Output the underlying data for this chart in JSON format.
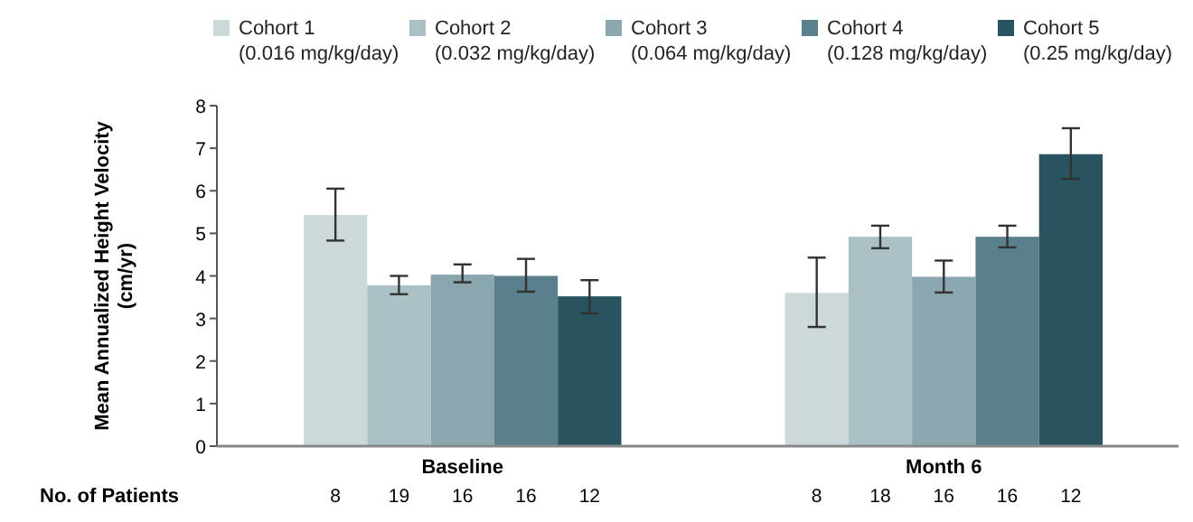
{
  "chart_data": {
    "type": "bar",
    "ylabel": "Mean Annualized Height Velocity (cm/yr)",
    "categories": [
      "Baseline",
      "Month 6"
    ],
    "series": [
      {
        "name": "Cohort 1 (0.016 mg/kg/day)",
        "color": "#ccd8da",
        "values": [
          5.43,
          3.6
        ],
        "errors": [
          [
            4.83,
            6.05
          ],
          [
            2.8,
            4.43
          ]
        ]
      },
      {
        "name": "Cohort 2 (0.032 mg/kg/day)",
        "color": "#aac0c5",
        "values": [
          3.78,
          4.92
        ],
        "errors": [
          [
            3.57,
            4.0
          ],
          [
            4.65,
            5.18
          ]
        ]
      },
      {
        "name": "Cohort 3 (0.064 mg/kg/day)",
        "color": "#8aa6ae",
        "values": [
          4.03,
          3.98
        ],
        "errors": [
          [
            3.85,
            4.27
          ],
          [
            3.61,
            4.36
          ]
        ]
      },
      {
        "name": "Cohort 4 (0.128 mg/kg/day)",
        "color": "#5b808d",
        "values": [
          4.0,
          4.92
        ],
        "errors": [
          [
            3.63,
            4.4
          ],
          [
            4.67,
            5.18
          ]
        ]
      },
      {
        "name": "Cohort 5 (0.25 mg/kg/day)",
        "color": "#27545f",
        "values": [
          3.52,
          6.86
        ],
        "errors": [
          [
            3.12,
            3.9
          ],
          [
            6.28,
            7.47
          ]
        ]
      }
    ],
    "ylim": [
      0,
      8
    ],
    "yticks": [
      0,
      1,
      2,
      3,
      4,
      5,
      6,
      7,
      8
    ],
    "legend": "top",
    "grid": false,
    "annotations": [
      "No. of Patients",
      "8",
      "8",
      "19",
      "18",
      "16",
      "16",
      "16",
      "16",
      "12",
      "12"
    ]
  }
}
